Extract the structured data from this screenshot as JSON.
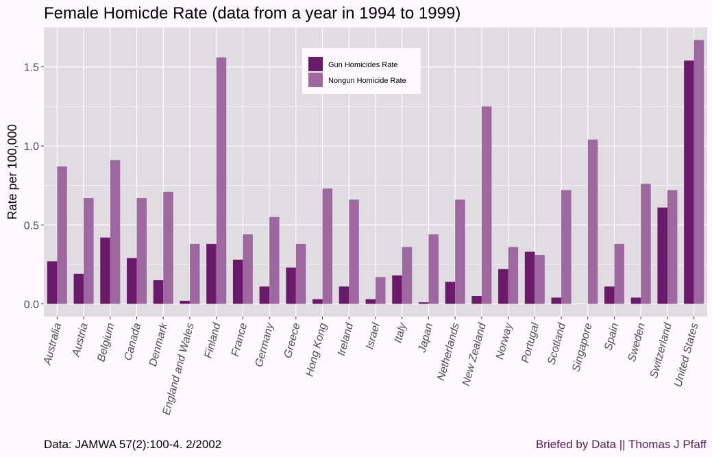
{
  "chart_data": {
    "type": "bar",
    "title": "Female Homicde Rate (data from a year in 1994 to 1999)",
    "xlabel": "",
    "ylabel": "Rate per 100,000",
    "ylim": [
      -0.08,
      1.75
    ],
    "yticks": [
      0.0,
      0.5,
      1.0,
      1.5
    ],
    "ytick_labels": [
      "0.0",
      "0.5",
      "1.0",
      "1.5"
    ],
    "grid": true,
    "legend_position": "top-center",
    "categories": [
      "Australia",
      "Austria",
      "Belgium",
      "Canada",
      "Denmark",
      "England and Wales",
      "Finland",
      "France",
      "Germany",
      "Greece",
      "Hong Kong",
      "Ireland",
      "Israel",
      "Italy",
      "Japan",
      "Netherlands",
      "New Zealand",
      "Norway",
      "Portugal",
      "Scotland",
      "Singapore",
      "Spain",
      "Sweden",
      "Switzerland",
      "United States"
    ],
    "series": [
      {
        "name": "Gun Homicides Rate",
        "color": "#6b1a6b",
        "values": [
          0.27,
          0.19,
          0.42,
          0.29,
          0.15,
          0.02,
          0.38,
          0.28,
          0.11,
          0.23,
          0.03,
          0.11,
          0.03,
          0.18,
          0.01,
          0.14,
          0.05,
          0.22,
          0.33,
          0.04,
          0.0,
          0.11,
          0.04,
          0.61,
          1.54
        ]
      },
      {
        "name": "Nongun Homicide Rate",
        "color": "#9e67a0",
        "values": [
          0.87,
          0.67,
          0.91,
          0.67,
          0.71,
          0.38,
          1.56,
          0.44,
          0.55,
          0.38,
          0.73,
          0.66,
          0.17,
          0.36,
          0.44,
          0.66,
          1.25,
          0.36,
          0.31,
          0.72,
          1.04,
          0.38,
          0.76,
          0.72,
          1.67
        ]
      }
    ]
  },
  "footer": {
    "source": "Data: JAMWA 57(2):100-4. 2/2002",
    "credit": "Briefed by Data || Thomas J Pfaff",
    "credit_color": "#5a1a5a"
  },
  "colors": {
    "panel_bg": "#e0dde0",
    "grid": "#ffffff"
  }
}
